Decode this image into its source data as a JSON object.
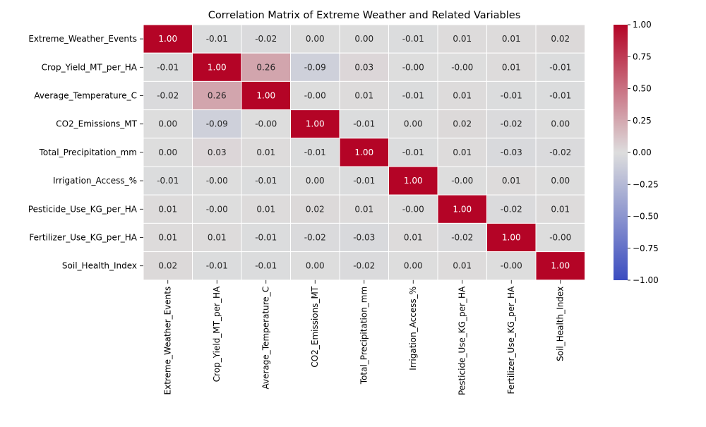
{
  "chart_data": {
    "type": "heatmap",
    "title": "Correlation Matrix of Extreme Weather and Related Variables",
    "xlabel": "",
    "ylabel": "",
    "categories": [
      "Extreme_Weather_Events",
      "Crop_Yield_MT_per_HA",
      "Average_Temperature_C",
      "CO2_Emissions_MT",
      "Total_Precipitation_mm",
      "Irrigation_Access_%",
      "Pesticide_Use_KG_per_HA",
      "Fertilizer_Use_KG_per_HA",
      "Soil_Health_Index"
    ],
    "matrix": [
      [
        1.0,
        -0.01,
        -0.02,
        0.0,
        0.0,
        -0.01,
        0.01,
        0.01,
        0.02
      ],
      [
        -0.01,
        1.0,
        0.26,
        -0.09,
        0.03,
        -0.0,
        -0.0,
        0.01,
        -0.01
      ],
      [
        -0.02,
        0.26,
        1.0,
        -0.0,
        0.01,
        -0.01,
        0.01,
        -0.01,
        -0.01
      ],
      [
        0.0,
        -0.09,
        -0.0,
        1.0,
        -0.01,
        0.0,
        0.02,
        -0.02,
        0.0
      ],
      [
        0.0,
        0.03,
        0.01,
        -0.01,
        1.0,
        -0.01,
        0.01,
        -0.03,
        -0.02
      ],
      [
        -0.01,
        -0.0,
        -0.01,
        0.0,
        -0.01,
        1.0,
        -0.0,
        0.01,
        0.0
      ],
      [
        0.01,
        -0.0,
        0.01,
        0.02,
        0.01,
        -0.0,
        1.0,
        -0.02,
        0.01
      ],
      [
        0.01,
        0.01,
        -0.01,
        -0.02,
        -0.03,
        0.01,
        -0.02,
        1.0,
        -0.0
      ],
      [
        0.02,
        -0.01,
        -0.01,
        0.0,
        -0.02,
        0.0,
        0.01,
        -0.0,
        1.0
      ]
    ],
    "cell_labels": [
      [
        "1.00",
        "-0.01",
        "-0.02",
        "0.00",
        "0.00",
        "-0.01",
        "0.01",
        "0.01",
        "0.02"
      ],
      [
        "-0.01",
        "1.00",
        "0.26",
        "-0.09",
        "0.03",
        "-0.00",
        "-0.00",
        "0.01",
        "-0.01"
      ],
      [
        "-0.02",
        "0.26",
        "1.00",
        "-0.00",
        "0.01",
        "-0.01",
        "0.01",
        "-0.01",
        "-0.01"
      ],
      [
        "0.00",
        "-0.09",
        "-0.00",
        "1.00",
        "-0.01",
        "0.00",
        "0.02",
        "-0.02",
        "0.00"
      ],
      [
        "0.00",
        "0.03",
        "0.01",
        "-0.01",
        "1.00",
        "-0.01",
        "0.01",
        "-0.03",
        "-0.02"
      ],
      [
        "-0.01",
        "-0.00",
        "-0.01",
        "0.00",
        "-0.01",
        "1.00",
        "-0.00",
        "0.01",
        "0.00"
      ],
      [
        "0.01",
        "-0.00",
        "0.01",
        "0.02",
        "0.01",
        "-0.00",
        "1.00",
        "-0.02",
        "0.01"
      ],
      [
        "0.01",
        "0.01",
        "-0.01",
        "-0.02",
        "-0.03",
        "0.01",
        "-0.02",
        "1.00",
        "-0.00"
      ],
      [
        "0.02",
        "-0.01",
        "-0.01",
        "0.00",
        "-0.02",
        "0.00",
        "0.01",
        "-0.00",
        "1.00"
      ]
    ],
    "colormap": "coolwarm",
    "colormap_stops": [
      "#3b4cc0",
      "#dddddd",
      "#b40426"
    ],
    "value_range": [
      -1.0,
      1.0
    ],
    "colorbar": {
      "ticks": [
        1.0,
        0.75,
        0.5,
        0.25,
        0.0,
        -0.25,
        -0.5,
        -0.75,
        -1.0
      ],
      "tick_labels": [
        "1.00",
        "0.75",
        "0.50",
        "0.25",
        "0.00",
        "−0.25",
        "−0.50",
        "−0.75",
        "−1.00"
      ]
    },
    "grid_lines": true,
    "grid_line_color": "#ffffff"
  }
}
